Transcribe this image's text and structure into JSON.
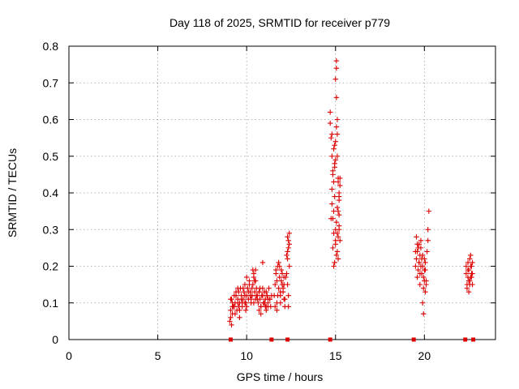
{
  "chart_data": {
    "type": "scatter",
    "title": "Day 118 of 2025, SRMTID for receiver p779",
    "xlabel": "GPS time / hours",
    "ylabel": "SRMTID / TECUs",
    "xlim": [
      0,
      24
    ],
    "ylim": [
      0,
      0.8
    ],
    "xticks": [
      0,
      5,
      10,
      15,
      20
    ],
    "xtick_labels": [
      "0",
      "5",
      "10",
      "15",
      "20"
    ],
    "yticks": [
      0,
      0.1,
      0.2,
      0.3,
      0.4,
      0.5,
      0.6,
      0.7,
      0.8
    ],
    "ytick_labels": [
      "0",
      "0.1",
      "0.2",
      "0.3",
      "0.4",
      "0.5",
      "0.6",
      "0.7",
      "0.8"
    ],
    "grid": true,
    "legend": "none",
    "marker": "plus",
    "color": "#dd0000",
    "series": [
      {
        "x": [
          9.05,
          9.1,
          9.15,
          9.2,
          9.25,
          9.3,
          9.35,
          9.4,
          9.45,
          9.5,
          9.55,
          9.6,
          9.65,
          9.7,
          9.75,
          9.8,
          9.85,
          9.9,
          9.95,
          10.0,
          10.05,
          10.1,
          10.15,
          10.2,
          10.25,
          10.3,
          10.35,
          10.4,
          10.45,
          10.5,
          10.55,
          10.6,
          10.65,
          10.7,
          10.75,
          10.8,
          10.85,
          10.9,
          10.95,
          11.0,
          11.05,
          11.1,
          11.15,
          11.2,
          11.25,
          11.3,
          11.35,
          11.4,
          9.1,
          9.2,
          9.3,
          9.4,
          9.5,
          9.6,
          9.7,
          9.8,
          9.9,
          10.0,
          10.1,
          10.2,
          10.3,
          10.4,
          10.5,
          10.6,
          10.7,
          10.8,
          10.9,
          11.0,
          11.1,
          11.2,
          11.3,
          9.15,
          9.35,
          9.55,
          9.75,
          9.95,
          10.15,
          10.35,
          10.55,
          10.75,
          10.95,
          11.15,
          9.2,
          9.6,
          10.0,
          10.4,
          10.8,
          11.2,
          9.1,
          9.5,
          9.9,
          10.3,
          10.7,
          11.1,
          10.45,
          10.5,
          10.25,
          10.9,
          11.05
        ],
        "y": [
          0.05,
          0.08,
          0.11,
          0.07,
          0.09,
          0.12,
          0.1,
          0.13,
          0.08,
          0.11,
          0.09,
          0.1,
          0.14,
          0.12,
          0.09,
          0.11,
          0.13,
          0.15,
          0.1,
          0.12,
          0.14,
          0.11,
          0.16,
          0.13,
          0.1,
          0.12,
          0.15,
          0.17,
          0.13,
          0.11,
          0.14,
          0.12,
          0.1,
          0.13,
          0.11,
          0.09,
          0.12,
          0.14,
          0.1,
          0.13,
          0.11,
          0.08,
          0.12,
          0.1,
          0.14,
          0.11,
          0.09,
          0.12,
          0.06,
          0.1,
          0.09,
          0.12,
          0.1,
          0.08,
          0.11,
          0.14,
          0.12,
          0.09,
          0.13,
          0.12,
          0.14,
          0.1,
          0.16,
          0.11,
          0.13,
          0.09,
          0.12,
          0.1,
          0.13,
          0.09,
          0.11,
          0.04,
          0.07,
          0.13,
          0.1,
          0.08,
          0.15,
          0.19,
          0.12,
          0.14,
          0.1,
          0.12,
          0.09,
          0.06,
          0.17,
          0.18,
          0.07,
          0.11,
          0.11,
          0.14,
          0.1,
          0.12,
          0.08,
          0.09,
          0.16,
          0.19,
          0.11,
          0.21,
          0.09
        ]
      },
      {
        "x": [
          11.55,
          11.6,
          11.65,
          11.7,
          11.75,
          11.8,
          11.85,
          11.9,
          11.95,
          12.0,
          12.05,
          12.1,
          12.15,
          11.6,
          11.7,
          11.8,
          11.9,
          12.0,
          12.1,
          11.65,
          11.75,
          11.85,
          11.95,
          12.05,
          11.7,
          11.9,
          12.1,
          12.15,
          12.25,
          12.3,
          12.35,
          12.4,
          12.3,
          12.35,
          12.4,
          12.25,
          12.3,
          12.35,
          12.4,
          12.3,
          12.2,
          12.35
        ],
        "y": [
          0.12,
          0.15,
          0.18,
          0.1,
          0.2,
          0.14,
          0.17,
          0.12,
          0.19,
          0.15,
          0.13,
          0.17,
          0.11,
          0.09,
          0.16,
          0.21,
          0.13,
          0.18,
          0.15,
          0.19,
          0.12,
          0.2,
          0.16,
          0.14,
          0.08,
          0.1,
          0.11,
          0.09,
          0.18,
          0.22,
          0.25,
          0.29,
          0.28,
          0.27,
          0.26,
          0.23,
          0.15,
          0.12,
          0.2,
          0.24,
          0.17,
          0.09
        ]
      },
      {
        "x": [
          14.7,
          14.75,
          14.8,
          14.85,
          14.9,
          14.95,
          15.0,
          15.05,
          15.1,
          15.15,
          15.2,
          15.25,
          14.7,
          14.8,
          14.9,
          15.0,
          15.1,
          15.2,
          14.75,
          14.85,
          14.95,
          15.05,
          15.15,
          15.25,
          14.8,
          14.9,
          15.0,
          15.1,
          15.2,
          14.85,
          14.95,
          15.05,
          15.15,
          14.9,
          15.0,
          15.1,
          15.05,
          15.05,
          15.0,
          15.05,
          15.1,
          14.95,
          14.95,
          15.15,
          15.15,
          15.2,
          15.2,
          15.1,
          14.9,
          15.0,
          15.25,
          15.2,
          14.8,
          14.85
        ],
        "y": [
          0.62,
          0.55,
          0.5,
          0.45,
          0.52,
          0.48,
          0.54,
          0.58,
          0.5,
          0.44,
          0.38,
          0.42,
          0.59,
          0.41,
          0.35,
          0.3,
          0.36,
          0.4,
          0.33,
          0.46,
          0.39,
          0.32,
          0.28,
          0.27,
          0.37,
          0.29,
          0.26,
          0.24,
          0.31,
          0.25,
          0.21,
          0.23,
          0.22,
          0.2,
          0.27,
          0.29,
          0.74,
          0.76,
          0.71,
          0.66,
          0.6,
          0.53,
          0.47,
          0.43,
          0.35,
          0.34,
          0.3,
          0.56,
          0.43,
          0.49,
          0.44,
          0.39,
          0.56,
          0.33
        ]
      },
      {
        "x": [
          19.5,
          19.55,
          19.6,
          19.65,
          19.7,
          19.75,
          19.8,
          19.85,
          19.9,
          19.95,
          20.0,
          20.05,
          20.1,
          19.5,
          19.6,
          19.7,
          19.8,
          19.9,
          20.0,
          19.55,
          19.65,
          19.75,
          19.85,
          19.95,
          20.05,
          19.6,
          19.8,
          20.0,
          20.15,
          20.2,
          20.25,
          20.2,
          19.95,
          19.9,
          20.1,
          20.05,
          19.7,
          19.75
        ],
        "y": [
          0.2,
          0.22,
          0.24,
          0.19,
          0.21,
          0.23,
          0.25,
          0.18,
          0.2,
          0.17,
          0.22,
          0.19,
          0.15,
          0.24,
          0.26,
          0.21,
          0.2,
          0.23,
          0.16,
          0.28,
          0.25,
          0.18,
          0.22,
          0.14,
          0.13,
          0.17,
          0.27,
          0.19,
          0.24,
          0.3,
          0.35,
          0.27,
          0.07,
          0.1,
          0.16,
          0.21,
          0.26,
          0.15
        ]
      },
      {
        "x": [
          22.35,
          22.4,
          22.45,
          22.5,
          22.55,
          22.6,
          22.65,
          22.7,
          22.4,
          22.5,
          22.6,
          22.7,
          22.45,
          22.55,
          22.65,
          22.5,
          22.6,
          22.7,
          22.35,
          22.45,
          22.55,
          22.65
        ],
        "y": [
          0.18,
          0.15,
          0.17,
          0.19,
          0.16,
          0.2,
          0.18,
          0.15,
          0.14,
          0.13,
          0.17,
          0.21,
          0.19,
          0.22,
          0.2,
          0.16,
          0.23,
          0.18,
          0.2,
          0.21,
          0.15,
          0.17
        ]
      }
    ],
    "zero_markers_x": [
      9.1,
      11.4,
      12.3,
      14.7,
      19.4,
      22.3,
      22.75
    ]
  }
}
